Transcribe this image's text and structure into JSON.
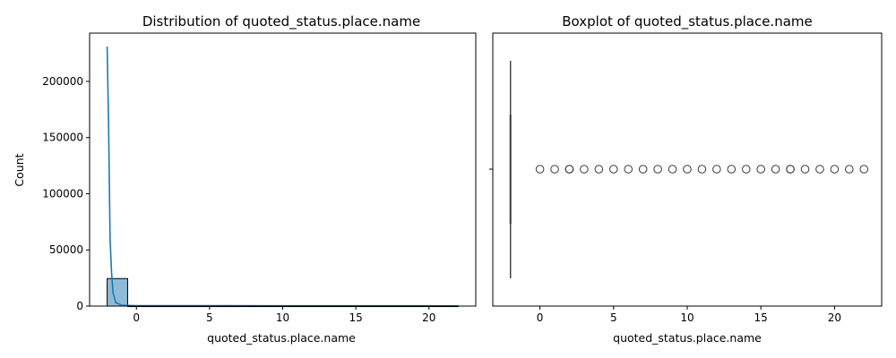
{
  "chart_data": [
    {
      "type": "histogram",
      "title": "Distribution of quoted_status.place.name",
      "xlabel": "quoted_status.place.name",
      "ylabel": "Count",
      "xlim": [
        -3.2,
        23.2
      ],
      "ylim": [
        0,
        243000
      ],
      "xticks": [
        0,
        5,
        10,
        15,
        20
      ],
      "yticks": [
        0,
        50000,
        100000,
        150000,
        200000
      ],
      "ytick_labels": [
        "0",
        "50000",
        "100000",
        "150000",
        "200000"
      ],
      "bins": [
        {
          "x0": -2.0,
          "x1": -0.6,
          "count": 24500
        },
        {
          "x0": -0.6,
          "x1": 22.0,
          "count": 200
        }
      ],
      "kde": [
        [
          -2.0,
          231000
        ],
        [
          -1.9,
          160000
        ],
        [
          -1.8,
          60000
        ],
        [
          -1.7,
          30000
        ],
        [
          -1.6,
          12000
        ],
        [
          -1.4,
          3000
        ],
        [
          -1.0,
          800
        ],
        [
          0.0,
          400
        ],
        [
          5.0,
          350
        ],
        [
          10.0,
          300
        ],
        [
          15.0,
          300
        ],
        [
          20.0,
          250
        ],
        [
          22.0,
          200
        ]
      ],
      "bar_color": "#1f77b4",
      "line_color": "#1f77b4",
      "grid": false
    },
    {
      "type": "boxplot",
      "title": "Boxplot of quoted_status.place.name",
      "xlabel": "quoted_status.place.name",
      "xlim": [
        -3.2,
        23.2
      ],
      "xticks": [
        0,
        5,
        10,
        15,
        20
      ],
      "box": {
        "q1": -2,
        "median": -2,
        "q3": -2,
        "whisker_low": -2,
        "whisker_high": -2
      },
      "outliers": [
        0,
        1,
        2,
        2,
        3,
        4,
        5,
        6,
        7,
        8,
        9,
        10,
        11,
        12,
        13,
        14,
        15,
        16,
        17,
        17,
        18,
        19,
        20,
        21,
        22
      ],
      "grid": false
    }
  ]
}
